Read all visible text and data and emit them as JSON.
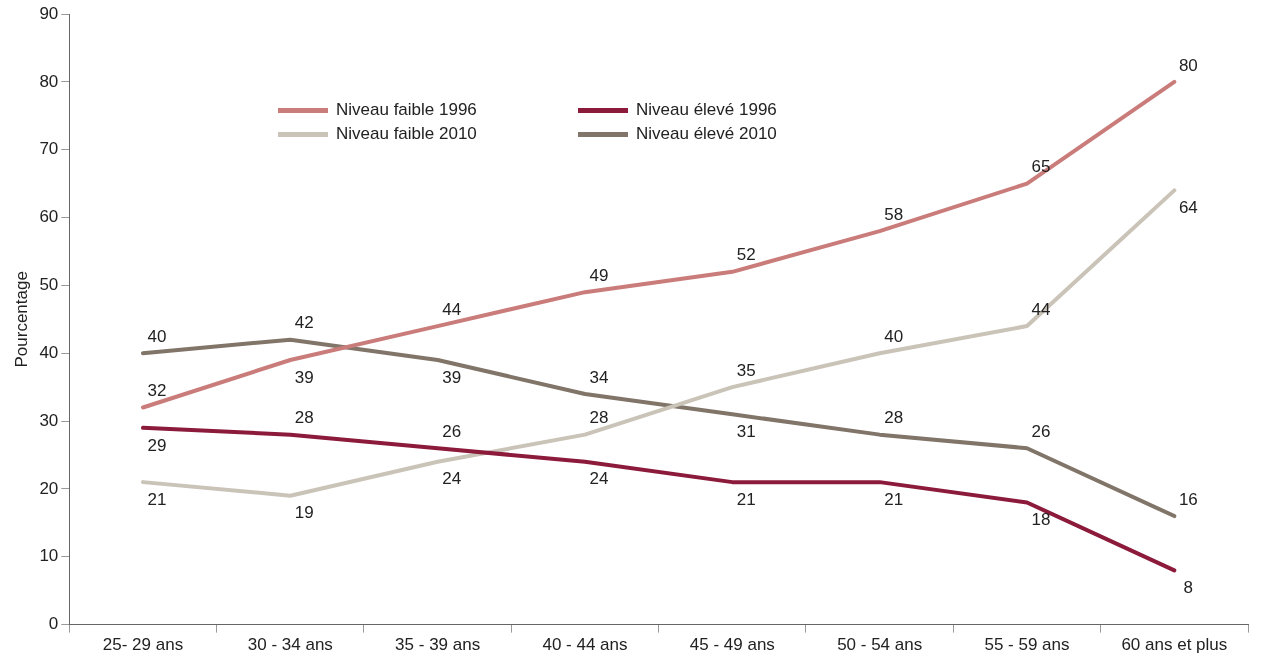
{
  "chart_data": {
    "type": "line",
    "ylabel": "Pourcentage",
    "categories": [
      "25- 29 ans",
      "30 - 34 ans",
      "35 - 39 ans",
      "40 - 44 ans",
      "45 - 49 ans",
      "50 - 54 ans",
      "55 - 59 ans",
      "60 ans et plus"
    ],
    "series": [
      {
        "name": "Niveau faible 1996",
        "color": "#c97c7a",
        "values": [
          32,
          39,
          44,
          49,
          52,
          58,
          65,
          80
        ]
      },
      {
        "name": "Niveau élevé 1996",
        "color": "#8c1a3b",
        "values": [
          29,
          28,
          26,
          24,
          21,
          21,
          18,
          8
        ]
      },
      {
        "name": "Niveau faible 2010",
        "color": "#cac3b8",
        "values": [
          21,
          19,
          24,
          28,
          35,
          40,
          44,
          64
        ]
      },
      {
        "name": "Niveau élevé 2010",
        "color": "#807568",
        "values": [
          40,
          42,
          39,
          34,
          31,
          28,
          26,
          16
        ]
      }
    ],
    "ylim": [
      0,
      90
    ],
    "yticks": [
      0,
      10,
      20,
      30,
      40,
      50,
      60,
      70,
      80,
      90
    ],
    "grid": false,
    "legend": "top",
    "marker": "none",
    "line_style": "solid",
    "data_labels": true
  }
}
